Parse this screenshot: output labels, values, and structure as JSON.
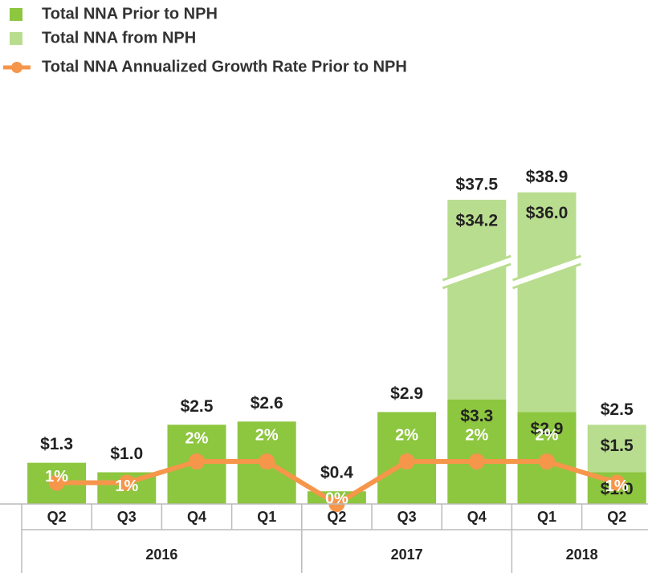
{
  "chart_data": {
    "type": "bar",
    "categories": [
      "Q2",
      "Q3",
      "Q4",
      "Q1",
      "Q2",
      "Q3",
      "Q4",
      "Q1",
      "Q2"
    ],
    "years": [
      "2016",
      null,
      null,
      null,
      "2017",
      null,
      null,
      "2018",
      null
    ],
    "series": [
      {
        "name": "Total NNA Prior to NPH",
        "color": "#8dc63f",
        "values": [
          1.3,
          1.0,
          2.5,
          2.6,
          0.4,
          2.9,
          3.3,
          2.9,
          1.0
        ],
        "value_labels": [
          "$1.3",
          "$1.0",
          "$2.5",
          "$2.6",
          "$0.4",
          "$2.9",
          "$3.3",
          "$2.9",
          "$1.0"
        ]
      },
      {
        "name": "Total NNA from NPH",
        "color": "#b9dd8f",
        "values": [
          null,
          null,
          null,
          null,
          null,
          null,
          34.2,
          36.0,
          1.5
        ],
        "value_labels": [
          null,
          null,
          null,
          null,
          null,
          null,
          "$34.2",
          "$36.0",
          "$1.5"
        ]
      },
      {
        "name": "Total NNA Annualized Growth Rate Prior to NPH",
        "color": "#f5964b",
        "type": "line",
        "axis": "y2",
        "values": [
          1,
          1,
          2,
          2,
          0,
          2,
          2,
          2,
          1
        ],
        "value_labels": [
          "1%",
          "1%",
          "2%",
          "2%",
          "0%",
          "2%",
          "2%",
          "2%",
          "1%"
        ]
      }
    ],
    "totals": {
      "values": [
        null,
        null,
        null,
        null,
        null,
        null,
        37.5,
        38.9,
        2.5
      ],
      "value_labels": [
        null,
        null,
        null,
        null,
        null,
        null,
        "$37.5",
        "$38.9",
        "$2.5"
      ]
    }
  }
}
